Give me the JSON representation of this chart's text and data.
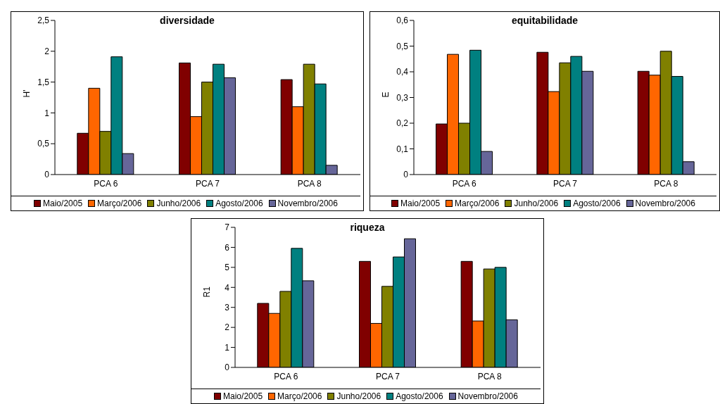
{
  "chart_data": [
    {
      "type": "bar",
      "title": "diversidade",
      "ylabel": "H'",
      "categories": [
        "PCA 6",
        "PCA 7",
        "PCA 8"
      ],
      "ylim": [
        0,
        2.5
      ],
      "yticks": [
        0,
        {
          "value": 0.5,
          "label": "0,5"
        },
        1,
        {
          "value": 1.5,
          "label": "1,5"
        },
        2,
        {
          "value": 2.5,
          "label": "2,5"
        }
      ],
      "legend": "bottom",
      "grid": false,
      "series": [
        {
          "name": "Maio/2005",
          "color": "#800000",
          "values": [
            0.67,
            1.81,
            1.54
          ]
        },
        {
          "name": "Março/2006",
          "color": "#ff6600",
          "values": [
            1.4,
            0.94,
            1.1
          ]
        },
        {
          "name": "Junho/2006",
          "color": "#808000",
          "values": [
            0.7,
            1.5,
            1.79
          ]
        },
        {
          "name": "Agosto/2006",
          "color": "#008080",
          "values": [
            1.91,
            1.79,
            1.47
          ]
        },
        {
          "name": "Novembro/2006",
          "color": "#666699",
          "values": [
            0.34,
            1.57,
            0.15
          ]
        }
      ]
    },
    {
      "type": "bar",
      "title": "equitabilidade",
      "ylabel": "E",
      "categories": [
        "PCA 6",
        "PCA 7",
        "PCA 8"
      ],
      "ylim": [
        0,
        0.6
      ],
      "yticks": [
        0,
        {
          "value": 0.1,
          "label": "0,1"
        },
        {
          "value": 0.2,
          "label": "0,2"
        },
        {
          "value": 0.3,
          "label": "0,3"
        },
        {
          "value": 0.4,
          "label": "0,4"
        },
        {
          "value": 0.5,
          "label": "0,5"
        },
        {
          "value": 0.6,
          "label": "0,6"
        }
      ],
      "legend": "bottom",
      "grid": false,
      "series": [
        {
          "name": "Maio/2005",
          "color": "#800000",
          "values": [
            0.197,
            0.476,
            0.402
          ]
        },
        {
          "name": "Março/2006",
          "color": "#ff6600",
          "values": [
            0.468,
            0.323,
            0.387
          ]
        },
        {
          "name": "Junho/2006",
          "color": "#808000",
          "values": [
            0.2,
            0.435,
            0.48
          ]
        },
        {
          "name": "Agosto/2006",
          "color": "#008080",
          "values": [
            0.484,
            0.46,
            0.382
          ]
        },
        {
          "name": "Novembro/2006",
          "color": "#666699",
          "values": [
            0.09,
            0.402,
            0.05
          ]
        }
      ]
    },
    {
      "type": "bar",
      "title": "riqueza",
      "ylabel": "R1",
      "categories": [
        "PCA 6",
        "PCA 7",
        "PCA 8"
      ],
      "ylim": [
        0,
        7
      ],
      "yticks": [
        0,
        1,
        2,
        3,
        4,
        5,
        6,
        7
      ],
      "legend": "bottom",
      "grid": false,
      "series": [
        {
          "name": "Maio/2005",
          "color": "#800000",
          "values": [
            3.2,
            5.3,
            5.3
          ]
        },
        {
          "name": "Março/2006",
          "color": "#ff6600",
          "values": [
            2.7,
            2.2,
            2.32
          ]
        },
        {
          "name": "Junho/2006",
          "color": "#808000",
          "values": [
            3.8,
            4.05,
            4.92
          ]
        },
        {
          "name": "Agosto/2006",
          "color": "#008080",
          "values": [
            5.95,
            5.52,
            5.0
          ]
        },
        {
          "name": "Novembro/2006",
          "color": "#666699",
          "values": [
            4.33,
            6.43,
            2.38
          ]
        }
      ]
    }
  ]
}
